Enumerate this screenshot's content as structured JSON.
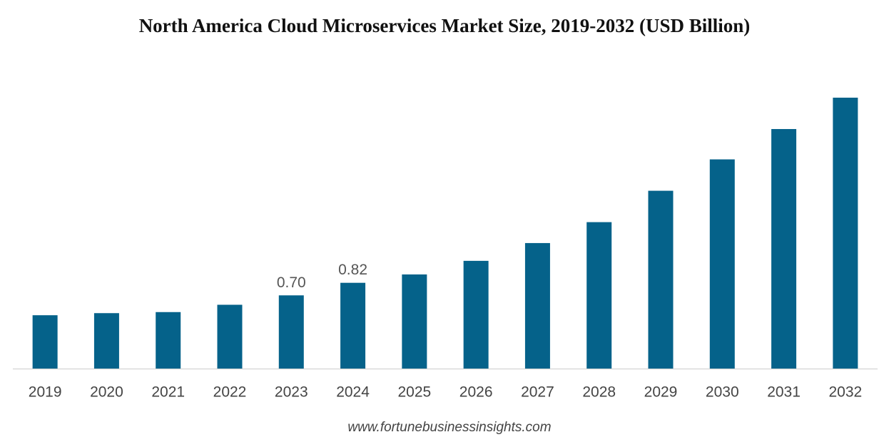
{
  "chart_data": {
    "type": "bar",
    "title": "North America Cloud Microservices Market Size, 2019-2032 (USD Billion)",
    "categories": [
      "2019",
      "2020",
      "2021",
      "2022",
      "2023",
      "2024",
      "2025",
      "2026",
      "2027",
      "2028",
      "2029",
      "2030",
      "2031",
      "2032"
    ],
    "values": [
      0.51,
      0.53,
      0.54,
      0.61,
      0.7,
      0.82,
      0.9,
      1.03,
      1.2,
      1.4,
      1.7,
      2.0,
      2.29,
      2.59
    ],
    "value_labels": [
      null,
      null,
      null,
      null,
      "0.70",
      "0.82",
      null,
      null,
      null,
      null,
      null,
      null,
      null,
      null
    ],
    "color": "#05628a",
    "source": "www.fortunebusinessinsights.com"
  }
}
